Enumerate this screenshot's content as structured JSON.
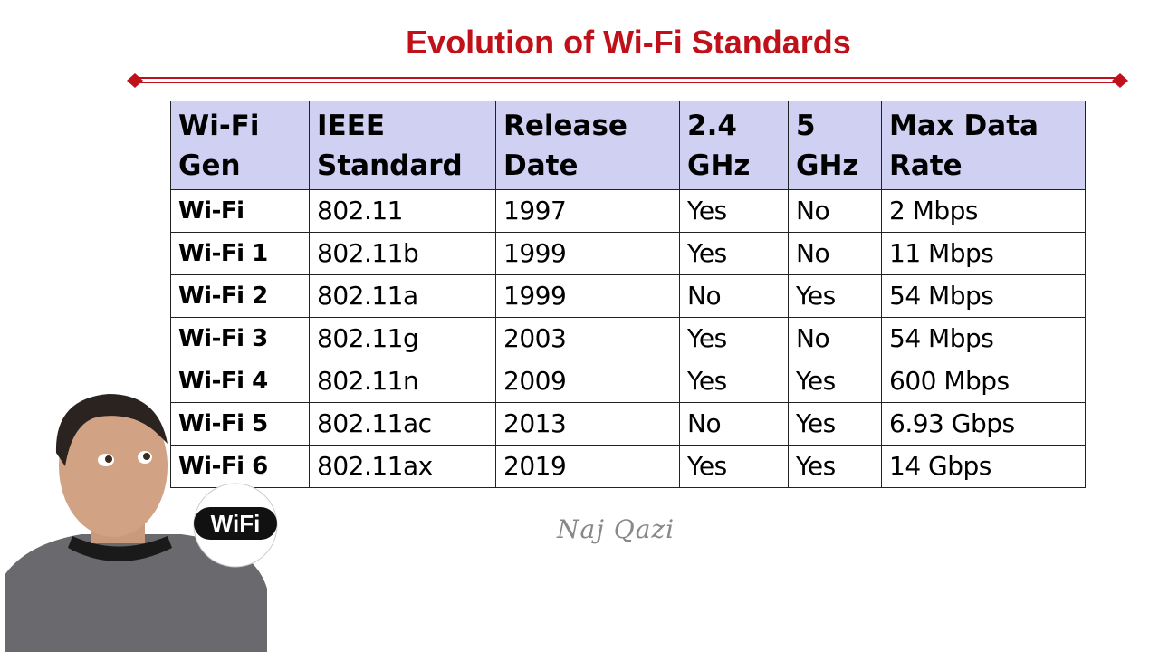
{
  "title": "Evolution of Wi-Fi Standards",
  "table": {
    "header": [
      [
        "Wi-Fi",
        "Gen"
      ],
      [
        "IEEE",
        "Standard"
      ],
      [
        "Release",
        "Date"
      ],
      [
        "2.4",
        "GHz"
      ],
      [
        "5",
        "GHz"
      ],
      [
        "Max Data",
        "Rate"
      ]
    ],
    "rows": [
      [
        "Wi-Fi",
        "802.11",
        "1997",
        "Yes",
        "No",
        "2 Mbps"
      ],
      [
        "Wi-Fi 1",
        "802.11b",
        "1999",
        "Yes",
        "No",
        "11 Mbps"
      ],
      [
        "Wi-Fi 2",
        "802.11a",
        "1999",
        "No",
        "Yes",
        "54 Mbps"
      ],
      [
        "Wi-Fi 3",
        "802.11g",
        "2003",
        "Yes",
        "No",
        "54 Mbps"
      ],
      [
        "Wi-Fi 4",
        "802.11n",
        "2009",
        "Yes",
        "Yes",
        "600 Mbps"
      ],
      [
        "Wi-Fi 5",
        "802.11ac",
        "2013",
        "No",
        "Yes",
        "6.93 Gbps"
      ],
      [
        "Wi-Fi 6",
        "802.11ax",
        "2019",
        "Yes",
        "Yes",
        "14 Gbps"
      ]
    ]
  },
  "signature": "Naj Qazi",
  "logo": "WiFi"
}
